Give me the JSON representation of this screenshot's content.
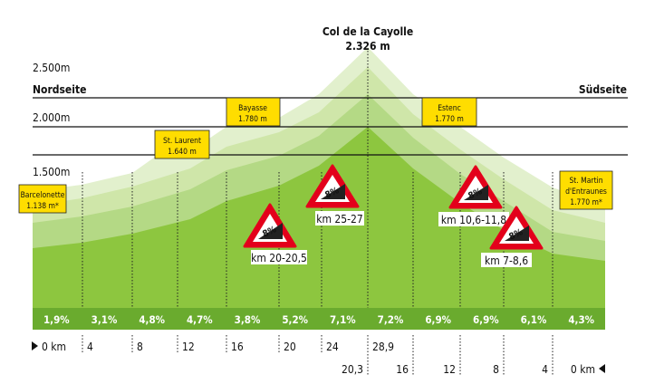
{
  "summit": {
    "name": "Col de la Cayolle",
    "elevation": "2.326 m"
  },
  "sides": {
    "north": "Nordseite",
    "south": "Südseite"
  },
  "elevation_ticks": [
    "2.500m",
    "2.000m",
    "1.500m"
  ],
  "places": [
    {
      "name": "Barcelonette",
      "elevation": "1.138 m*"
    },
    {
      "name": "St. Laurent",
      "elevation": "1.640 m"
    },
    {
      "name": "Bayasse",
      "elevation": "1.780 m"
    },
    {
      "name": "Estenc",
      "elevation": "1.770 m"
    },
    {
      "name": "St. Martin d'Entraunes",
      "name_lines": [
        "St. Martin",
        "d'Entraunes"
      ],
      "elevation": "1.770 m*"
    }
  ],
  "steep_signs": [
    {
      "grade": "8%",
      "range": "km 20-20,5"
    },
    {
      "grade": "8%",
      "range": "km 25-27"
    },
    {
      "grade": "8%",
      "range": "km 10,6-11,8"
    },
    {
      "grade": "8%",
      "range": "km 7-8,6"
    }
  ],
  "gradients": [
    "1,9%",
    "3,1%",
    "4,8%",
    "4,7%",
    "3,8%",
    "5,2%",
    "7,1%",
    "7,2%",
    "6,9%",
    "6,9%",
    "6,1%",
    "4,3%"
  ],
  "km_north": {
    "start": "0 km",
    "marks": [
      "4",
      "8",
      "12",
      "16",
      "20",
      "24",
      "28,9"
    ]
  },
  "km_south": {
    "start": "0 km",
    "marks": [
      "20,3",
      "16",
      "12",
      "8",
      "4"
    ]
  },
  "colors": {
    "ground_dark": "#8dc63f",
    "ground_mid": "#b4d985",
    "ground_light": "#cfe6a9",
    "ground_pale": "#e2f0cd",
    "gradient_band": "#6aab2e",
    "place_box": "#ffdd00",
    "sign_red": "#e3001b"
  }
}
